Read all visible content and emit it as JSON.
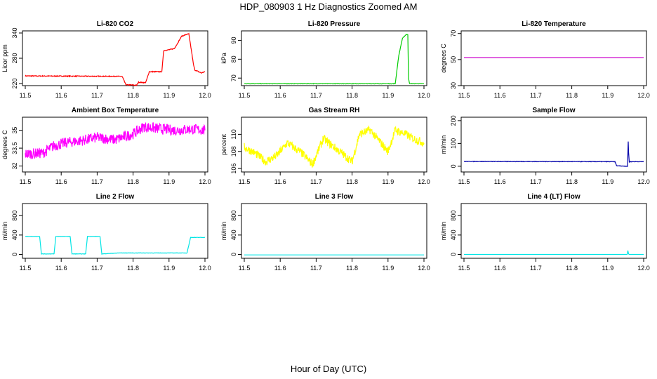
{
  "title": "HDP_080903  1 Hz Diagnostics Zoomed AM",
  "xlabel": "Hour of Day (UTC)",
  "chart_data": [
    {
      "type": "line",
      "title": "Li-820 CO2",
      "ylabel": "Licor ppm",
      "color": "#ff0000",
      "xlim": [
        11.5,
        12.0
      ],
      "ylim": [
        215,
        345
      ],
      "yticks": [
        220,
        280,
        340
      ],
      "noise": 1,
      "x": [
        11.5,
        11.765,
        11.77,
        11.78,
        11.81,
        11.815,
        11.835,
        11.845,
        11.88,
        11.885,
        11.905,
        11.915,
        11.935,
        11.94,
        11.955,
        11.962,
        11.968,
        11.972,
        11.99,
        12.0
      ],
      "y": [
        238,
        237,
        236,
        217,
        216,
        223,
        222,
        248,
        248,
        298,
        301,
        303,
        332,
        334,
        338,
        300,
        265,
        252,
        245,
        248
      ]
    },
    {
      "type": "line",
      "title": "Li-820 Pressure",
      "ylabel": "kPa",
      "color": "#00cc00",
      "xlim": [
        11.5,
        12.0
      ],
      "ylim": [
        66,
        95
      ],
      "yticks": [
        70,
        80,
        90
      ],
      "noise": 0.1,
      "x": [
        11.5,
        11.92,
        11.93,
        11.94,
        11.95,
        11.955,
        11.957,
        11.96,
        12.0
      ],
      "y": [
        67,
        67,
        82,
        91,
        93,
        93,
        70,
        67,
        67
      ]
    },
    {
      "type": "line",
      "title": "Li-820 Temperature",
      "ylabel": "degrees C",
      "color": "#cc00cc",
      "xlim": [
        11.5,
        12.0
      ],
      "ylim": [
        30,
        72
      ],
      "yticks": [
        30,
        50,
        70
      ],
      "noise": 0,
      "x": [
        11.5,
        12.0
      ],
      "y": [
        51.5,
        51.5
      ]
    },
    {
      "type": "line",
      "title": "Ambient Box Temperature",
      "ylabel": "degrees C",
      "color": "#ff00ff",
      "xlim": [
        11.5,
        12.0
      ],
      "ylim": [
        31.5,
        36.1
      ],
      "yticks": [
        32.0,
        33.5,
        35.0
      ],
      "noise": 0.45,
      "x": [
        11.5,
        11.55,
        11.58,
        11.62,
        11.65,
        11.7,
        11.75,
        11.8,
        11.83,
        11.88,
        11.92,
        11.96,
        12.0
      ],
      "y": [
        33.0,
        33.1,
        33.7,
        34.0,
        34.1,
        34.4,
        34.2,
        34.7,
        35.3,
        35.1,
        35.0,
        35.1,
        35.0
      ]
    },
    {
      "type": "line",
      "title": "Gas Stream RH",
      "ylabel": "percent",
      "color": "#ffff00",
      "xlim": [
        11.5,
        12.0
      ],
      "ylim": [
        105.6,
        112
      ],
      "yticks": [
        106,
        108,
        110
      ],
      "noise": 0.5,
      "x": [
        11.5,
        11.53,
        11.56,
        11.59,
        11.62,
        11.66,
        11.69,
        11.72,
        11.75,
        11.78,
        11.8,
        11.82,
        11.85,
        11.88,
        11.9,
        11.92,
        11.95,
        11.97,
        12.0
      ],
      "y": [
        108.5,
        107.8,
        106.8,
        107.5,
        109,
        107.8,
        106.5,
        109.5,
        108.5,
        107.5,
        106.8,
        110,
        110.5,
        109,
        108,
        110.5,
        110,
        109.5,
        109
      ]
    },
    {
      "type": "line",
      "title": "Sample Flow",
      "ylabel": "ml/min",
      "color": "#0000aa",
      "xlim": [
        11.5,
        12.0
      ],
      "ylim": [
        -25,
        215
      ],
      "yticks": [
        0,
        100,
        200
      ],
      "noise": 1,
      "x": [
        11.5,
        11.92,
        11.925,
        11.955,
        11.957,
        11.958,
        11.96,
        11.962,
        12.0
      ],
      "y": [
        21,
        20,
        2,
        0,
        108,
        62,
        18,
        20,
        20
      ]
    },
    {
      "type": "line",
      "title": "Line 2 Flow",
      "ylabel": "ml/min",
      "color": "#00e5e5",
      "xlim": [
        11.5,
        12.0
      ],
      "ylim": [
        -80,
        1050
      ],
      "yticks": [
        0,
        400,
        800
      ],
      "noise": 3,
      "x": [
        11.5,
        11.54,
        11.545,
        11.58,
        11.585,
        11.625,
        11.63,
        11.668,
        11.673,
        11.708,
        11.713,
        11.76,
        11.95,
        11.96,
        12.0
      ],
      "y": [
        370,
        370,
        10,
        10,
        370,
        370,
        10,
        10,
        370,
        370,
        10,
        30,
        30,
        350,
        350
      ]
    },
    {
      "type": "line",
      "title": "Line 3 Flow",
      "ylabel": "ml/min",
      "color": "#00e5e5",
      "xlim": [
        11.5,
        12.0
      ],
      "ylim": [
        -80,
        1050
      ],
      "yticks": [
        0,
        400,
        800
      ],
      "noise": 0,
      "x": [
        11.5,
        12.0
      ],
      "y": [
        -10,
        -10
      ]
    },
    {
      "type": "line",
      "title": "Line 4 (LT) Flow",
      "ylabel": "ml/min",
      "color": "#00e5e5",
      "xlim": [
        11.5,
        12.0
      ],
      "ylim": [
        -80,
        1050
      ],
      "yticks": [
        0,
        400,
        800
      ],
      "noise": 0,
      "x": [
        11.5,
        11.954,
        11.956,
        11.958,
        11.96,
        12.0
      ],
      "y": [
        0,
        0,
        80,
        10,
        0,
        0
      ]
    }
  ],
  "xticks": [
    "11.5",
    "11.6",
    "11.7",
    "11.8",
    "11.9",
    "12.0"
  ]
}
